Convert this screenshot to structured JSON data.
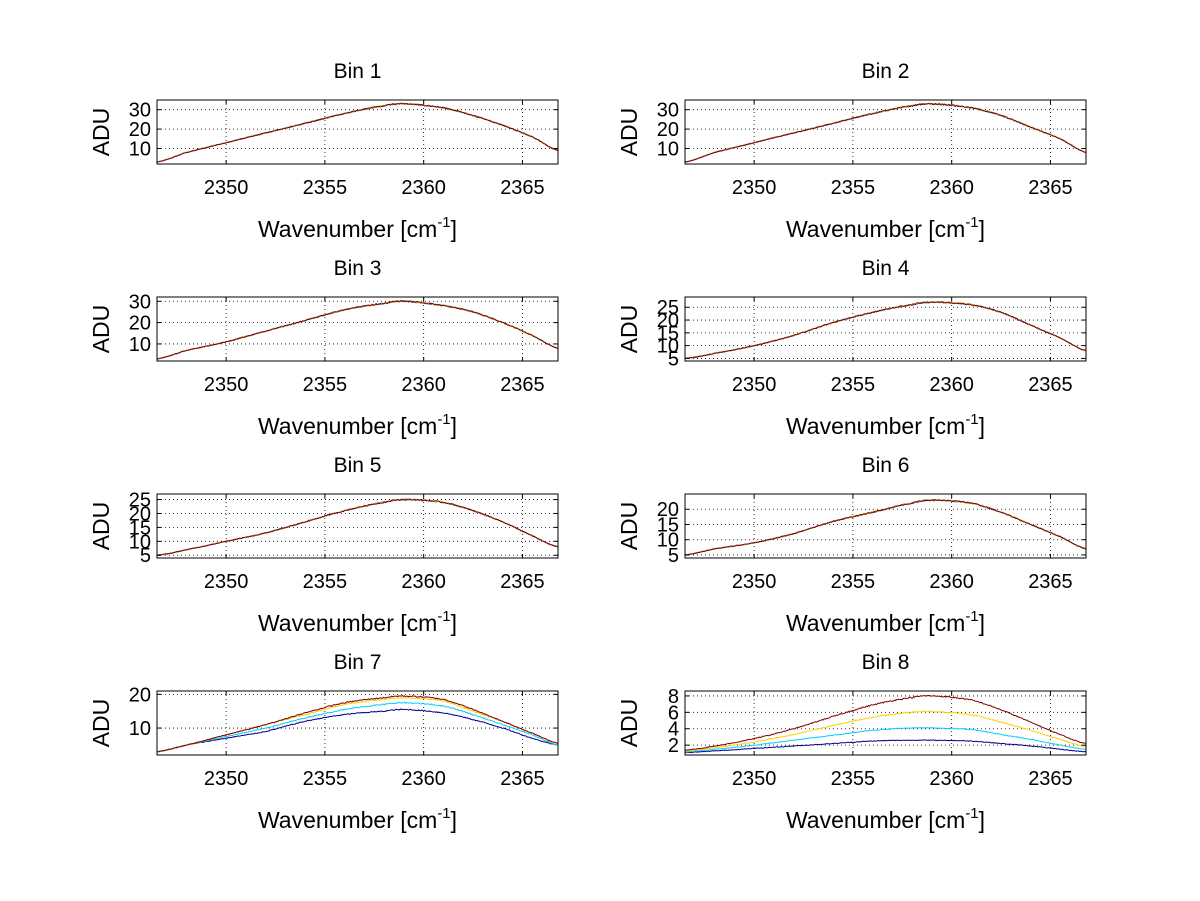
{
  "figure": {
    "background": "#ffffff",
    "axis_color": "#000000",
    "grid_color": "#000000"
  },
  "chart_data": [
    {
      "type": "line",
      "title": "Bin 1",
      "ylabel": "ADU",
      "xlabel": "Wavenumber [cm",
      "xlabel_sup": "-1",
      "xlabel_end": "]",
      "xlim": [
        2346.5,
        2366.8
      ],
      "ylim": [
        2,
        35
      ],
      "xticks": [
        2350,
        2355,
        2360,
        2365
      ],
      "yticks": [
        10,
        20,
        30
      ],
      "grid": true,
      "peak_x": 2358.5,
      "series": [
        {
          "color": "#00008f",
          "values": [
            3,
            8,
            13,
            18,
            23,
            28,
            32,
            33,
            31,
            27,
            22,
            16,
            9
          ]
        },
        {
          "color": "#00cfff",
          "values": [
            3,
            8,
            13,
            18,
            23,
            28,
            32,
            33,
            31,
            27,
            22,
            16,
            9
          ]
        },
        {
          "color": "#ffcf00",
          "values": [
            3,
            8,
            13,
            18,
            23,
            28,
            32,
            33,
            31,
            27,
            22,
            16,
            9
          ]
        },
        {
          "color": "#800000",
          "values": [
            3,
            8,
            13,
            18,
            23,
            28,
            32,
            33,
            31,
            27,
            22,
            16,
            9
          ]
        }
      ],
      "x": [
        2346.5,
        2348,
        2350,
        2352,
        2354,
        2356,
        2358,
        2359,
        2361,
        2362.5,
        2364,
        2365.5,
        2366.8
      ]
    },
    {
      "type": "line",
      "title": "Bin 2",
      "ylabel": "ADU",
      "xlabel": "Wavenumber [cm",
      "xlabel_sup": "-1",
      "xlabel_end": "]",
      "xlim": [
        2346.5,
        2366.8
      ],
      "ylim": [
        2,
        35
      ],
      "xticks": [
        2350,
        2355,
        2360,
        2365
      ],
      "yticks": [
        10,
        20,
        30
      ],
      "grid": true,
      "series": [
        {
          "color": "#00008f",
          "values": [
            3,
            8,
            13,
            18,
            23,
            28,
            32,
            33,
            31,
            27,
            21,
            15,
            8
          ]
        },
        {
          "color": "#00cfff",
          "values": [
            3,
            8,
            13,
            18,
            23,
            28,
            32,
            33,
            31,
            27,
            21,
            15,
            8
          ]
        },
        {
          "color": "#ffcf00",
          "values": [
            3,
            8,
            13,
            18,
            23,
            28,
            32,
            33,
            31,
            27,
            21,
            15,
            8
          ]
        },
        {
          "color": "#800000",
          "values": [
            3,
            8,
            13,
            18,
            23,
            28,
            32,
            33,
            31,
            27,
            21,
            15,
            8
          ]
        }
      ],
      "x": [
        2346.5,
        2348,
        2350,
        2352,
        2354,
        2356,
        2358,
        2359,
        2361,
        2362.5,
        2364,
        2365.5,
        2366.8
      ]
    },
    {
      "type": "line",
      "title": "Bin 3",
      "ylabel": "ADU",
      "xlabel": "Wavenumber [cm",
      "xlabel_sup": "-1",
      "xlabel_end": "]",
      "xlim": [
        2346.5,
        2366.8
      ],
      "ylim": [
        2,
        32
      ],
      "xticks": [
        2350,
        2355,
        2360,
        2365
      ],
      "yticks": [
        10,
        20,
        30
      ],
      "grid": true,
      "series": [
        {
          "color": "#00008f",
          "values": [
            3,
            7,
            11,
            16,
            21,
            26,
            29,
            30,
            28,
            25,
            20,
            14,
            8
          ]
        },
        {
          "color": "#00cfff",
          "values": [
            3,
            7,
            11,
            16,
            21,
            26,
            29,
            30,
            28,
            25,
            20,
            14,
            8
          ]
        },
        {
          "color": "#ffcf00",
          "values": [
            3,
            7,
            11,
            16,
            21,
            26,
            29,
            30,
            28,
            25,
            20,
            14,
            8
          ]
        },
        {
          "color": "#800000",
          "values": [
            3,
            7,
            11,
            16,
            21,
            26,
            29,
            30,
            28,
            25,
            20,
            14,
            8
          ]
        }
      ],
      "x": [
        2346.5,
        2348,
        2350,
        2352,
        2354,
        2356,
        2358,
        2359,
        2361,
        2362.5,
        2364,
        2365.5,
        2366.8
      ]
    },
    {
      "type": "line",
      "title": "Bin 4",
      "ylabel": "ADU",
      "xlabel": "Wavenumber [cm",
      "xlabel_sup": "-1",
      "xlabel_end": "]",
      "xlim": [
        2346.5,
        2366.8
      ],
      "ylim": [
        4,
        29
      ],
      "xticks": [
        2350,
        2355,
        2360,
        2365
      ],
      "yticks": [
        5,
        10,
        15,
        20,
        25
      ],
      "grid": true,
      "series": [
        {
          "color": "#00008f",
          "values": [
            5,
            7,
            10,
            14,
            19,
            23,
            26,
            27,
            26,
            23,
            18,
            13,
            8
          ]
        },
        {
          "color": "#00cfff",
          "values": [
            5,
            7,
            10,
            14,
            19,
            23,
            26,
            27,
            26,
            23,
            18,
            13,
            8
          ]
        },
        {
          "color": "#ffcf00",
          "values": [
            5,
            7,
            10,
            14,
            19,
            23,
            26,
            27,
            26,
            23,
            18,
            13,
            8
          ]
        },
        {
          "color": "#800000",
          "values": [
            5,
            7,
            10,
            14,
            19,
            23,
            26,
            27,
            26,
            23,
            18,
            13,
            8
          ]
        }
      ],
      "x": [
        2346.5,
        2348,
        2350,
        2352,
        2354,
        2356,
        2358,
        2359,
        2361,
        2362.5,
        2364,
        2365.5,
        2366.8
      ]
    },
    {
      "type": "line",
      "title": "Bin 5",
      "ylabel": "ADU",
      "xlabel": "Wavenumber [cm",
      "xlabel_sup": "-1",
      "xlabel_end": "]",
      "xlim": [
        2346.5,
        2366.8
      ],
      "ylim": [
        4,
        27
      ],
      "xticks": [
        2350,
        2355,
        2360,
        2365
      ],
      "yticks": [
        5,
        10,
        15,
        20,
        25
      ],
      "grid": true,
      "series": [
        {
          "color": "#00008f",
          "values": [
            5,
            7,
            10,
            13,
            17,
            21,
            24,
            25,
            24,
            21,
            17,
            12,
            8
          ]
        },
        {
          "color": "#00cfff",
          "values": [
            5,
            7,
            10,
            13,
            17,
            21,
            24,
            25,
            24,
            21,
            17,
            12,
            8
          ]
        },
        {
          "color": "#ffcf00",
          "values": [
            5,
            7,
            10,
            13,
            17,
            21,
            24,
            25,
            24,
            21,
            17,
            12,
            8
          ]
        },
        {
          "color": "#800000",
          "values": [
            5,
            7,
            10,
            13,
            17,
            21,
            24,
            25,
            24,
            21,
            17,
            12,
            8
          ]
        }
      ],
      "x": [
        2346.5,
        2348,
        2350,
        2352,
        2354,
        2356,
        2358,
        2359,
        2361,
        2362.5,
        2364,
        2365.5,
        2366.8
      ]
    },
    {
      "type": "line",
      "title": "Bin 6",
      "ylabel": "ADU",
      "xlabel": "Wavenumber [cm",
      "xlabel_sup": "-1",
      "xlabel_end": "]",
      "xlim": [
        2346.5,
        2366.8
      ],
      "ylim": [
        4,
        25
      ],
      "xticks": [
        2350,
        2355,
        2360,
        2365
      ],
      "yticks": [
        5,
        10,
        15,
        20
      ],
      "grid": true,
      "series": [
        {
          "color": "#00008f",
          "values": [
            5,
            7,
            9,
            12,
            16,
            19,
            22,
            23,
            22,
            19,
            15,
            11,
            7
          ]
        },
        {
          "color": "#00cfff",
          "values": [
            5,
            7,
            9,
            12,
            16,
            19,
            22,
            23,
            22,
            19,
            15,
            11,
            7
          ]
        },
        {
          "color": "#ffcf00",
          "values": [
            5,
            7,
            9,
            12,
            16,
            19,
            22,
            23,
            22,
            19,
            15,
            11,
            7
          ]
        },
        {
          "color": "#800000",
          "values": [
            5,
            7,
            9,
            12,
            16,
            19,
            22,
            23,
            22,
            19,
            15,
            11,
            7
          ]
        }
      ],
      "x": [
        2346.5,
        2348,
        2350,
        2352,
        2354,
        2356,
        2358,
        2359,
        2361,
        2362.5,
        2364,
        2365.5,
        2366.8
      ]
    },
    {
      "type": "line",
      "title": "Bin 7",
      "ylabel": "ADU",
      "xlabel": "Wavenumber [cm",
      "xlabel_sup": "-1",
      "xlabel_end": "]",
      "xlim": [
        2346.5,
        2366.8
      ],
      "ylim": [
        2,
        21
      ],
      "xticks": [
        2350,
        2355,
        2360,
        2365
      ],
      "yticks": [
        10,
        20
      ],
      "grid": true,
      "series": [
        {
          "color": "#00008f",
          "values": [
            3,
            5,
            7,
            9,
            12,
            14,
            15,
            15.5,
            14.5,
            12.5,
            10,
            7,
            5
          ]
        },
        {
          "color": "#00cfff",
          "values": [
            3,
            5,
            7.5,
            10,
            13,
            15.5,
            17,
            17.5,
            16.5,
            14,
            11,
            8,
            5
          ]
        },
        {
          "color": "#ffcf00",
          "values": [
            3,
            5,
            8,
            11,
            14,
            17,
            18.5,
            19,
            18,
            15,
            12,
            8.5,
            5.5
          ]
        },
        {
          "color": "#800000",
          "values": [
            3,
            5,
            8,
            11,
            14.5,
            17.5,
            19,
            19.5,
            18.5,
            15.5,
            12,
            8.5,
            5.5
          ]
        }
      ],
      "x": [
        2346.5,
        2348,
        2350,
        2352,
        2354,
        2356,
        2358,
        2359,
        2361,
        2362.5,
        2364,
        2365.5,
        2366.8
      ]
    },
    {
      "type": "line",
      "title": "Bin 8",
      "ylabel": "ADU",
      "xlabel": "Wavenumber [cm",
      "xlabel_sup": "-1",
      "xlabel_end": "]",
      "xlim": [
        2346.5,
        2366.8
      ],
      "ylim": [
        0.8,
        8.6
      ],
      "xticks": [
        2350,
        2355,
        2360,
        2365
      ],
      "yticks": [
        2,
        4,
        6,
        8
      ],
      "grid": true,
      "series": [
        {
          "color": "#00008f",
          "values": [
            1.1,
            1.3,
            1.6,
            1.9,
            2.2,
            2.5,
            2.6,
            2.6,
            2.5,
            2.2,
            1.9,
            1.5,
            1.2
          ]
        },
        {
          "color": "#00cfff",
          "values": [
            1.2,
            1.5,
            2.0,
            2.6,
            3.2,
            3.8,
            4.1,
            4.1,
            3.9,
            3.3,
            2.7,
            2.0,
            1.5
          ]
        },
        {
          "color": "#ffcf00",
          "values": [
            1.3,
            1.7,
            2.4,
            3.3,
            4.4,
            5.4,
            6.0,
            6.1,
            5.7,
            4.8,
            3.8,
            2.7,
            1.8
          ]
        },
        {
          "color": "#800000",
          "values": [
            1.4,
            1.9,
            2.8,
            4.0,
            5.5,
            6.9,
            7.8,
            8.0,
            7.5,
            6.3,
            4.8,
            3.3,
            2.2
          ]
        }
      ],
      "x": [
        2346.5,
        2348,
        2350,
        2352,
        2354,
        2356,
        2358,
        2359,
        2361,
        2362.5,
        2364,
        2365.5,
        2366.8
      ]
    }
  ]
}
